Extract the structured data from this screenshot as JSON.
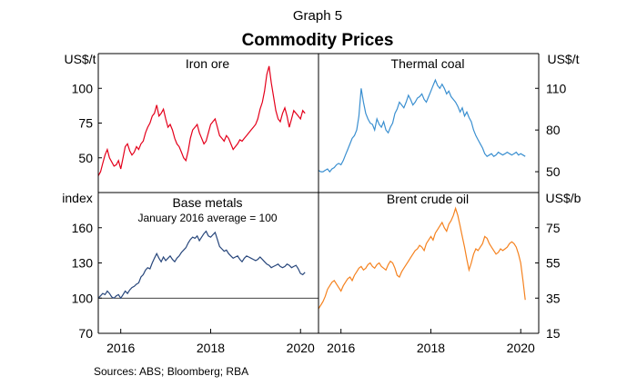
{
  "graph_label": "Graph 5",
  "title": "Commodity Prices",
  "source": "Sources:   ABS; Bloomberg; RBA",
  "chart_data": [
    {
      "type": "line",
      "title": "Iron ore",
      "ylabel": "US$/t",
      "ylim": [
        25,
        125
      ],
      "yticks": [
        50,
        75,
        100
      ],
      "xlim": [
        2015.5,
        2020.4
      ],
      "color": "#e4001b",
      "series": [
        {
          "x": [
            2015.5,
            2015.55,
            2015.6,
            2015.65,
            2015.7,
            2015.75,
            2015.8,
            2015.85,
            2015.9,
            2015.95,
            2016.0,
            2016.05,
            2016.1,
            2016.15,
            2016.2,
            2016.25,
            2016.3,
            2016.35,
            2016.4,
            2016.45,
            2016.5,
            2016.55,
            2016.6,
            2016.65,
            2016.7,
            2016.75,
            2016.8,
            2016.85,
            2016.9,
            2016.95,
            2017.0,
            2017.05,
            2017.1,
            2017.15,
            2017.2,
            2017.25,
            2017.3,
            2017.35,
            2017.4,
            2017.45,
            2017.5,
            2017.55,
            2017.6,
            2017.65,
            2017.7,
            2017.75,
            2017.8,
            2017.85,
            2017.9,
            2017.95,
            2018.0,
            2018.05,
            2018.1,
            2018.15,
            2018.2,
            2018.25,
            2018.3,
            2018.35,
            2018.4,
            2018.45,
            2018.5,
            2018.55,
            2018.6,
            2018.65,
            2018.7,
            2018.75,
            2018.8,
            2018.85,
            2018.9,
            2018.95,
            2019.0,
            2019.05,
            2019.1,
            2019.15,
            2019.2,
            2019.25,
            2019.3,
            2019.35,
            2019.4,
            2019.45,
            2019.5,
            2019.55,
            2019.6,
            2019.65,
            2019.7,
            2019.75,
            2019.8,
            2019.85,
            2019.9,
            2019.95,
            2020.0,
            2020.05,
            2020.1
          ],
          "y": [
            37,
            40,
            46,
            52,
            56,
            50,
            47,
            44,
            45,
            48,
            42,
            50,
            58,
            60,
            55,
            52,
            54,
            58,
            56,
            60,
            62,
            68,
            72,
            75,
            80,
            82,
            88,
            80,
            82,
            85,
            78,
            72,
            74,
            70,
            64,
            60,
            58,
            54,
            50,
            48,
            55,
            64,
            70,
            72,
            74,
            68,
            64,
            60,
            62,
            68,
            74,
            76,
            78,
            72,
            66,
            64,
            62,
            66,
            64,
            60,
            56,
            58,
            60,
            63,
            62,
            64,
            66,
            68,
            70,
            72,
            74,
            78,
            85,
            90,
            98,
            110,
            116,
            104,
            94,
            84,
            78,
            76,
            82,
            86,
            80,
            72,
            78,
            84,
            82,
            80,
            78,
            84,
            82
          ]
        }
      ]
    },
    {
      "type": "line",
      "title": "Thermal coal",
      "ylabel": "US$/t",
      "ylim": [
        35,
        135
      ],
      "yticks": [
        50,
        80,
        110
      ],
      "xlim": [
        2015.5,
        2020.4
      ],
      "color": "#3a8fd0",
      "series": [
        {
          "x": [
            2015.5,
            2015.55,
            2015.6,
            2015.65,
            2015.7,
            2015.75,
            2015.8,
            2015.85,
            2015.9,
            2015.95,
            2016.0,
            2016.05,
            2016.1,
            2016.15,
            2016.2,
            2016.25,
            2016.3,
            2016.35,
            2016.4,
            2016.45,
            2016.5,
            2016.55,
            2016.6,
            2016.65,
            2016.7,
            2016.75,
            2016.8,
            2016.85,
            2016.9,
            2016.95,
            2017.0,
            2017.05,
            2017.1,
            2017.15,
            2017.2,
            2017.25,
            2017.3,
            2017.35,
            2017.4,
            2017.45,
            2017.5,
            2017.55,
            2017.6,
            2017.65,
            2017.7,
            2017.75,
            2017.8,
            2017.85,
            2017.9,
            2017.95,
            2018.0,
            2018.05,
            2018.1,
            2018.15,
            2018.2,
            2018.25,
            2018.3,
            2018.35,
            2018.4,
            2018.45,
            2018.5,
            2018.55,
            2018.6,
            2018.65,
            2018.7,
            2018.75,
            2018.8,
            2018.85,
            2018.9,
            2018.95,
            2019.0,
            2019.05,
            2019.1,
            2019.15,
            2019.2,
            2019.25,
            2019.3,
            2019.35,
            2019.4,
            2019.45,
            2019.5,
            2019.55,
            2019.6,
            2019.65,
            2019.7,
            2019.75,
            2019.8,
            2019.85,
            2019.9,
            2019.95,
            2020.0,
            2020.05,
            2020.1
          ],
          "y": [
            51,
            50,
            50,
            51,
            52,
            50,
            52,
            53,
            55,
            56,
            55,
            58,
            62,
            66,
            70,
            74,
            76,
            80,
            90,
            110,
            100,
            92,
            88,
            85,
            84,
            80,
            88,
            84,
            82,
            86,
            80,
            78,
            82,
            85,
            92,
            95,
            100,
            98,
            96,
            100,
            105,
            102,
            98,
            100,
            103,
            104,
            106,
            102,
            100,
            104,
            108,
            112,
            116,
            112,
            110,
            113,
            110,
            106,
            108,
            104,
            102,
            100,
            97,
            93,
            96,
            90,
            93,
            89,
            86,
            80,
            76,
            73,
            70,
            67,
            63,
            61,
            62,
            63,
            61,
            62,
            64,
            63,
            62,
            63,
            64,
            63,
            62,
            63,
            64,
            62,
            63,
            62,
            61
          ]
        }
      ]
    },
    {
      "type": "line",
      "title": "Base metals",
      "subtitle": "January 2016 average = 100",
      "ylabel": "index",
      "ylim": [
        70,
        190
      ],
      "yticks": [
        70,
        100,
        130,
        160
      ],
      "xlim": [
        2015.5,
        2020.4
      ],
      "xticks": [
        2016,
        2018,
        2020
      ],
      "baseline": 100,
      "color": "#27467b",
      "series": [
        {
          "x": [
            2015.5,
            2015.55,
            2015.6,
            2015.65,
            2015.7,
            2015.75,
            2015.8,
            2015.85,
            2015.9,
            2015.95,
            2016.0,
            2016.05,
            2016.1,
            2016.15,
            2016.2,
            2016.25,
            2016.3,
            2016.35,
            2016.4,
            2016.45,
            2016.5,
            2016.55,
            2016.6,
            2016.65,
            2016.7,
            2016.75,
            2016.8,
            2016.85,
            2016.9,
            2016.95,
            2017.0,
            2017.05,
            2017.1,
            2017.15,
            2017.2,
            2017.25,
            2017.3,
            2017.35,
            2017.4,
            2017.45,
            2017.5,
            2017.55,
            2017.6,
            2017.65,
            2017.7,
            2017.75,
            2017.8,
            2017.85,
            2017.9,
            2017.95,
            2018.0,
            2018.05,
            2018.1,
            2018.15,
            2018.2,
            2018.25,
            2018.3,
            2018.35,
            2018.4,
            2018.45,
            2018.5,
            2018.55,
            2018.6,
            2018.65,
            2018.7,
            2018.75,
            2018.8,
            2018.85,
            2018.9,
            2018.95,
            2019.0,
            2019.05,
            2019.1,
            2019.15,
            2019.2,
            2019.25,
            2019.3,
            2019.35,
            2019.4,
            2019.45,
            2019.5,
            2019.55,
            2019.6,
            2019.65,
            2019.7,
            2019.75,
            2019.8,
            2019.85,
            2019.9,
            2019.95,
            2020.0,
            2020.05,
            2020.1
          ],
          "y": [
            100,
            102,
            104,
            103,
            106,
            104,
            101,
            100,
            102,
            103,
            100,
            103,
            106,
            104,
            107,
            109,
            110,
            112,
            113,
            118,
            120,
            124,
            126,
            125,
            130,
            134,
            138,
            134,
            131,
            135,
            132,
            134,
            136,
            133,
            131,
            134,
            136,
            139,
            141,
            143,
            147,
            150,
            152,
            151,
            153,
            149,
            152,
            155,
            157,
            153,
            152,
            154,
            156,
            150,
            144,
            142,
            140,
            141,
            138,
            136,
            134,
            135,
            136,
            133,
            131,
            134,
            136,
            135,
            134,
            133,
            132,
            133,
            135,
            133,
            131,
            129,
            128,
            126,
            127,
            128,
            129,
            127,
            126,
            127,
            129,
            128,
            126,
            127,
            128,
            125,
            121,
            120,
            122
          ]
        }
      ]
    },
    {
      "type": "line",
      "title": "Brent crude oil",
      "ylabel": "US$/b",
      "ylim": [
        15,
        95
      ],
      "yticks": [
        15,
        35,
        55,
        75
      ],
      "xlim": [
        2015.5,
        2020.4
      ],
      "xticks": [
        2016,
        2018,
        2020
      ],
      "color": "#f5821f",
      "series": [
        {
          "x": [
            2015.5,
            2015.55,
            2015.6,
            2015.65,
            2015.7,
            2015.75,
            2015.8,
            2015.85,
            2015.9,
            2015.95,
            2016.0,
            2016.05,
            2016.1,
            2016.15,
            2016.2,
            2016.25,
            2016.3,
            2016.35,
            2016.4,
            2016.45,
            2016.5,
            2016.55,
            2016.6,
            2016.65,
            2016.7,
            2016.75,
            2016.8,
            2016.85,
            2016.9,
            2016.95,
            2017.0,
            2017.05,
            2017.1,
            2017.15,
            2017.2,
            2017.25,
            2017.3,
            2017.35,
            2017.4,
            2017.45,
            2017.5,
            2017.55,
            2017.6,
            2017.65,
            2017.7,
            2017.75,
            2017.8,
            2017.85,
            2017.9,
            2017.95,
            2018.0,
            2018.05,
            2018.1,
            2018.15,
            2018.2,
            2018.25,
            2018.3,
            2018.35,
            2018.4,
            2018.45,
            2018.5,
            2018.55,
            2018.6,
            2018.65,
            2018.7,
            2018.75,
            2018.8,
            2018.85,
            2018.9,
            2018.95,
            2019.0,
            2019.05,
            2019.1,
            2019.15,
            2019.2,
            2019.25,
            2019.3,
            2019.35,
            2019.4,
            2019.45,
            2019.5,
            2019.55,
            2019.6,
            2019.65,
            2019.7,
            2019.75,
            2019.8,
            2019.85,
            2019.9,
            2019.95,
            2020.0,
            2020.05,
            2020.1
          ],
          "y": [
            29,
            31,
            33,
            36,
            40,
            42,
            44,
            45,
            43,
            41,
            39,
            42,
            44,
            46,
            47,
            45,
            48,
            50,
            52,
            53,
            51,
            52,
            54,
            55,
            53,
            52,
            54,
            55,
            53,
            52,
            51,
            54,
            56,
            55,
            52,
            48,
            47,
            50,
            52,
            54,
            56,
            58,
            60,
            62,
            63,
            65,
            64,
            62,
            66,
            68,
            70,
            68,
            72,
            74,
            76,
            78,
            75,
            73,
            77,
            79,
            82,
            86,
            82,
            76,
            70,
            64,
            57,
            51,
            55,
            60,
            63,
            62,
            64,
            66,
            70,
            69,
            66,
            64,
            62,
            60,
            61,
            63,
            62,
            63,
            64,
            66,
            67,
            66,
            64,
            60,
            55,
            45,
            34
          ]
        }
      ]
    }
  ]
}
